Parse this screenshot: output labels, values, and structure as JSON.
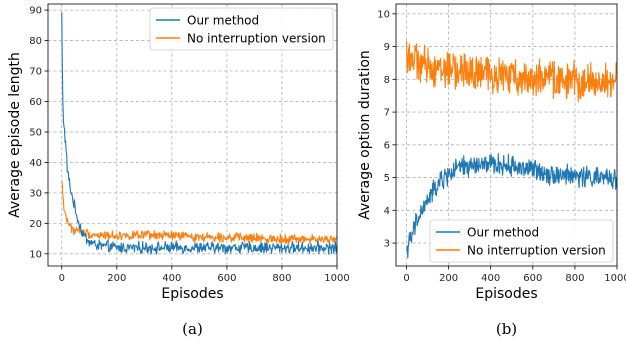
{
  "colors": {
    "series_a": "#1f77b4",
    "series_b": "#ff7f0e"
  },
  "chart_data": [
    {
      "type": "line",
      "caption": "(a)",
      "xlabel": "Episodes",
      "ylabel": "Average episode length",
      "xlim": [
        -50,
        1000
      ],
      "ylim": [
        6,
        92
      ],
      "xticks": [
        0,
        200,
        400,
        600,
        800,
        1000
      ],
      "yticks": [
        10,
        20,
        30,
        40,
        50,
        60,
        70,
        80,
        90
      ],
      "grid": true,
      "legend": "top-right",
      "series": [
        {
          "name": "Our method",
          "color": "#1f77b4",
          "x": [
            0,
            3,
            6,
            10,
            15,
            20,
            25,
            30,
            40,
            50,
            60,
            70,
            80,
            100,
            120,
            150,
            200,
            250,
            300,
            400,
            500,
            600,
            700,
            800,
            900,
            1000
          ],
          "y": [
            89,
            62,
            55,
            50,
            45,
            38,
            35,
            32,
            28,
            24,
            21,
            18,
            16,
            14,
            13,
            12.5,
            12,
            12,
            12,
            12,
            12,
            12,
            12,
            12,
            12,
            12
          ],
          "noise": 1.5
        },
        {
          "name": "No interruption version",
          "color": "#ff7f0e",
          "x": [
            0,
            5,
            10,
            20,
            30,
            40,
            60,
            80,
            100,
            150,
            200,
            300,
            400,
            500,
            600,
            700,
            800,
            900,
            1000
          ],
          "y": [
            34,
            28,
            24,
            21,
            19,
            18,
            17.5,
            17,
            16.5,
            16,
            16,
            16,
            16,
            15.5,
            15.5,
            15,
            15,
            14.8,
            14.5
          ],
          "noise": 1.2
        }
      ]
    },
    {
      "type": "line",
      "caption": "(b)",
      "xlabel": "Episodes",
      "ylabel": "Average option duration",
      "xlim": [
        -50,
        1000
      ],
      "ylim": [
        2.3,
        10.3
      ],
      "xticks": [
        0,
        200,
        400,
        600,
        800,
        1000
      ],
      "yticks": [
        3,
        4,
        5,
        6,
        7,
        8,
        9,
        10
      ],
      "grid": true,
      "legend": "bottom-right",
      "series": [
        {
          "name": "Our method",
          "color": "#1f77b4",
          "x": [
            0,
            20,
            50,
            100,
            150,
            200,
            250,
            300,
            400,
            500,
            600,
            700,
            800,
            900,
            1000
          ],
          "y": [
            2.8,
            3.1,
            3.7,
            4.3,
            4.8,
            5.1,
            5.3,
            5.35,
            5.4,
            5.35,
            5.25,
            5.1,
            5.05,
            5.0,
            4.95
          ],
          "noise": 0.25
        },
        {
          "name": "No interruption version",
          "color": "#ff7f0e",
          "x": [
            0,
            50,
            100,
            200,
            300,
            400,
            500,
            600,
            700,
            800,
            900,
            1000
          ],
          "y": [
            8.8,
            8.5,
            8.4,
            8.3,
            8.2,
            8.15,
            8.1,
            8.05,
            8.0,
            7.95,
            7.9,
            7.9
          ],
          "noise": 0.45
        }
      ]
    }
  ]
}
